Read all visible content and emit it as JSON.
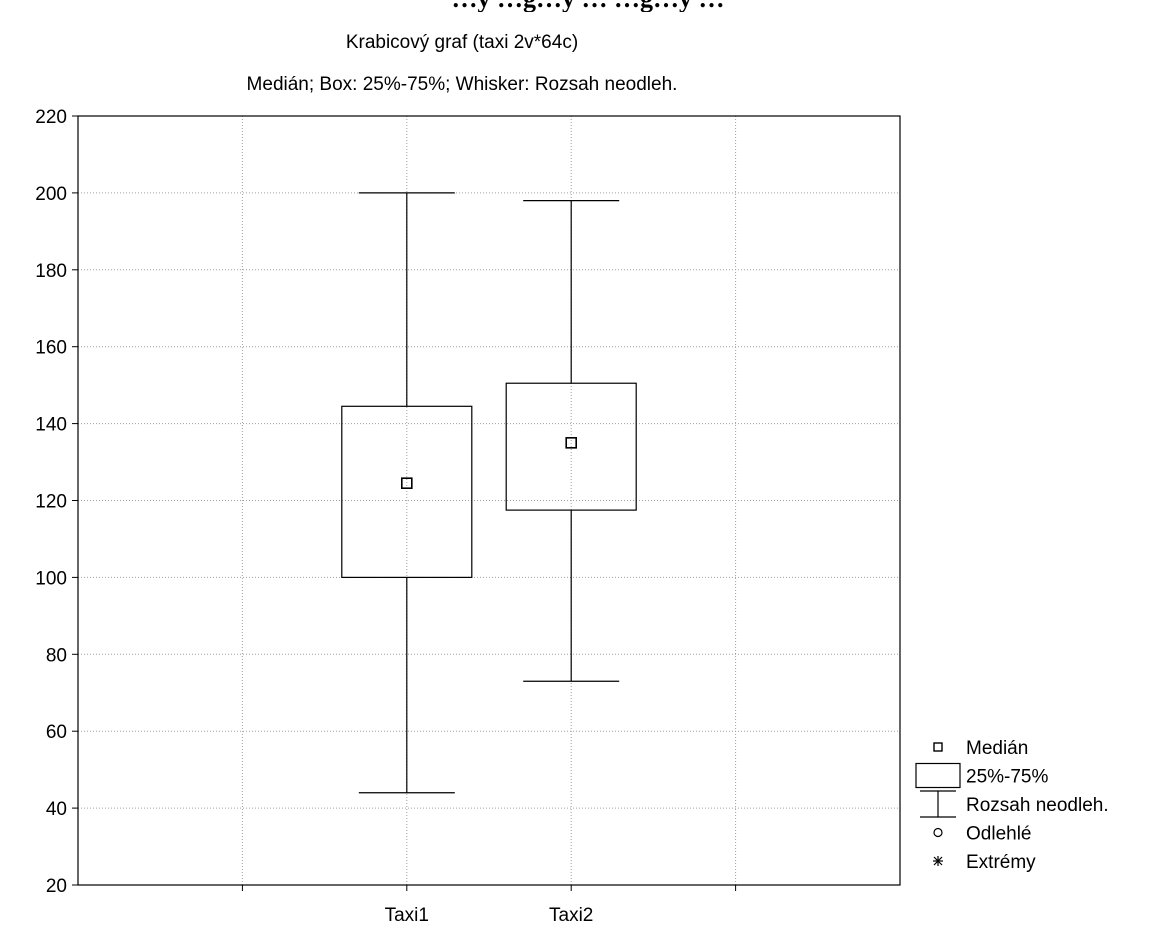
{
  "cut_off_heading": "…y …g…y … …g…y …",
  "chart_data": {
    "type": "boxplot",
    "title": "Krabicový graf (taxi 2v*64c)",
    "subtitle": "Medián; Box: 25%-75%; Whisker: Rozsah neodleh.",
    "xlabel": "",
    "ylabel": "",
    "ylim": [
      20,
      220
    ],
    "yticks": [
      20,
      40,
      60,
      80,
      100,
      120,
      140,
      160,
      180,
      200,
      220
    ],
    "categories": [
      "Taxi1",
      "Taxi2"
    ],
    "boxes": [
      {
        "category": "Taxi1",
        "whisker_low": 44,
        "q1": 100,
        "median": 124.5,
        "q3": 144.5,
        "whisker_high": 200
      },
      {
        "category": "Taxi2",
        "whisker_low": 73,
        "q1": 117.5,
        "median": 135,
        "q3": 150.5,
        "whisker_high": 198
      }
    ],
    "grid": true,
    "legend_position": "bottom-right",
    "legend": [
      {
        "symbol": "median-square",
        "label": "Medián"
      },
      {
        "symbol": "box",
        "label": "25%-75%"
      },
      {
        "symbol": "whisker",
        "label": "Rozsah neodleh."
      },
      {
        "symbol": "circle",
        "label": "Odlehlé"
      },
      {
        "symbol": "asterisk",
        "label": "Extrémy"
      }
    ],
    "colors": {
      "line": "#000000",
      "grid": "#a0a0a0",
      "background": "#ffffff"
    }
  }
}
